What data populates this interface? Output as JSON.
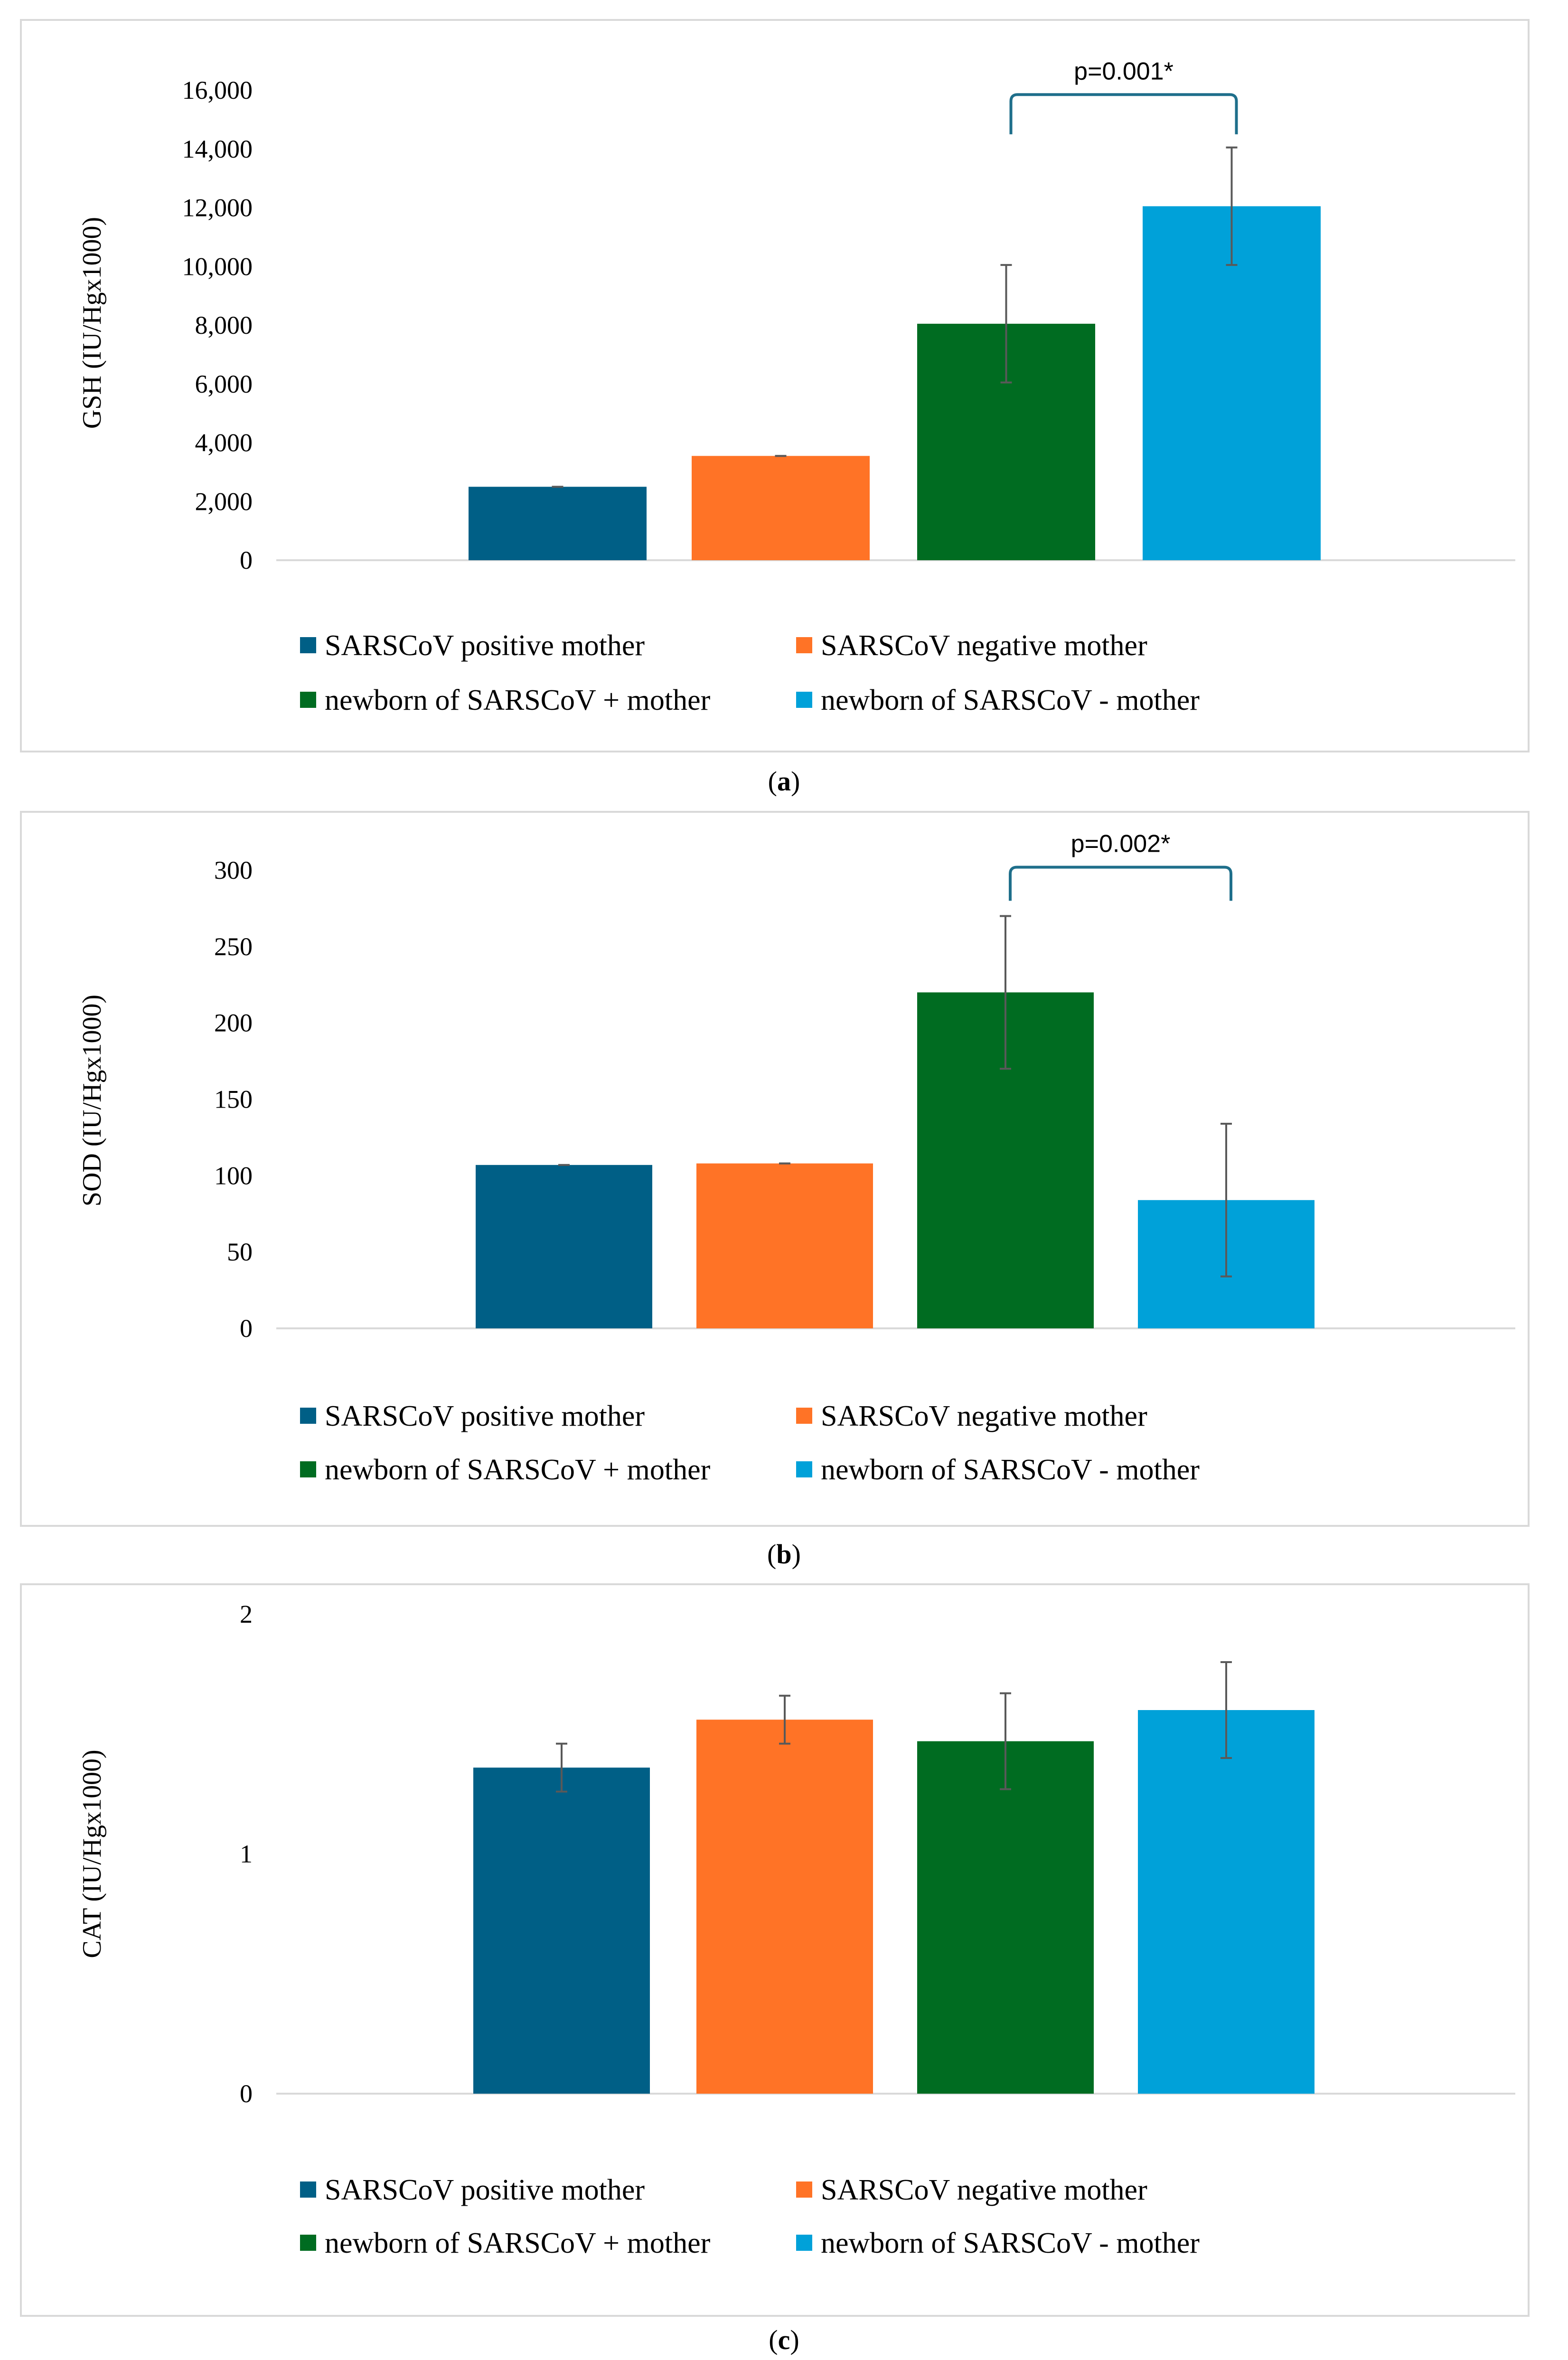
{
  "chart_data": [
    {
      "type": "bar",
      "panel": "a",
      "title": "",
      "ylabel": "GSH  (IU/Hgx1000)",
      "ylim": [
        0,
        16000
      ],
      "yticks": [
        0,
        2000,
        4000,
        6000,
        8000,
        10000,
        12000,
        14000,
        16000
      ],
      "ytick_labels": [
        "0",
        "2,000",
        "4,000",
        "6,000",
        "8,000",
        "10,000",
        "12,000",
        "14,000",
        "16,000"
      ],
      "categories": [
        "SARSCoV positive mother",
        "SARSCoV negative mother",
        "newborn of SARSCoV + mother",
        "newborn of SARSCoV - mother"
      ],
      "values": [
        2500,
        3550,
        8050,
        12050
      ],
      "errors": [
        0,
        0,
        2000,
        2000
      ],
      "colors": [
        "#005f86",
        "#ff7326",
        "#006c21",
        "#00a1d9"
      ],
      "significance": {
        "label": "p=0.001*",
        "from": 2,
        "to": 3,
        "top": 15850,
        "bottom": 14500
      },
      "caption": "a",
      "legend_placement": "bottom"
    },
    {
      "type": "bar",
      "panel": "b",
      "title": "",
      "ylabel": "SOD  (IU/Hgx1000)",
      "ylim": [
        0,
        300
      ],
      "yticks": [
        0,
        50,
        100,
        150,
        200,
        250,
        300
      ],
      "ytick_labels": [
        "0",
        "50",
        "100",
        "150",
        "200",
        "250",
        "300"
      ],
      "categories": [
        "SARSCoV positive mother",
        "SARSCoV negative mother",
        "newborn of SARSCoV + mother",
        "newborn of SARSCoV - mother"
      ],
      "values": [
        107,
        108,
        220,
        84
      ],
      "errors": [
        0,
        0,
        50,
        50
      ],
      "colors": [
        "#005f86",
        "#ff7326",
        "#006c21",
        "#00a1d9"
      ],
      "significance": {
        "label": "p=0.002*",
        "from": 2,
        "to": 3,
        "top": 302,
        "bottom": 280
      },
      "caption": "b",
      "legend_placement": "bottom"
    },
    {
      "type": "bar",
      "panel": "c",
      "title": "",
      "ylabel": "CAT  (IU/Hgx1000)",
      "ylim": [
        0,
        2
      ],
      "yticks": [
        0,
        1,
        2
      ],
      "ytick_labels": [
        "0",
        "1",
        "2"
      ],
      "categories": [
        "SARSCoV positive mother",
        "SARSCoV negative mother",
        "newborn of SARSCoV + mother",
        "newborn of SARSCoV - mother"
      ],
      "values": [
        1.36,
        1.56,
        1.47,
        1.6
      ],
      "errors": [
        0.1,
        0.1,
        0.2,
        0.2
      ],
      "colors": [
        "#005f86",
        "#ff7326",
        "#006c21",
        "#00a1d9"
      ],
      "significance": null,
      "caption": "c",
      "legend_placement": "bottom"
    }
  ]
}
